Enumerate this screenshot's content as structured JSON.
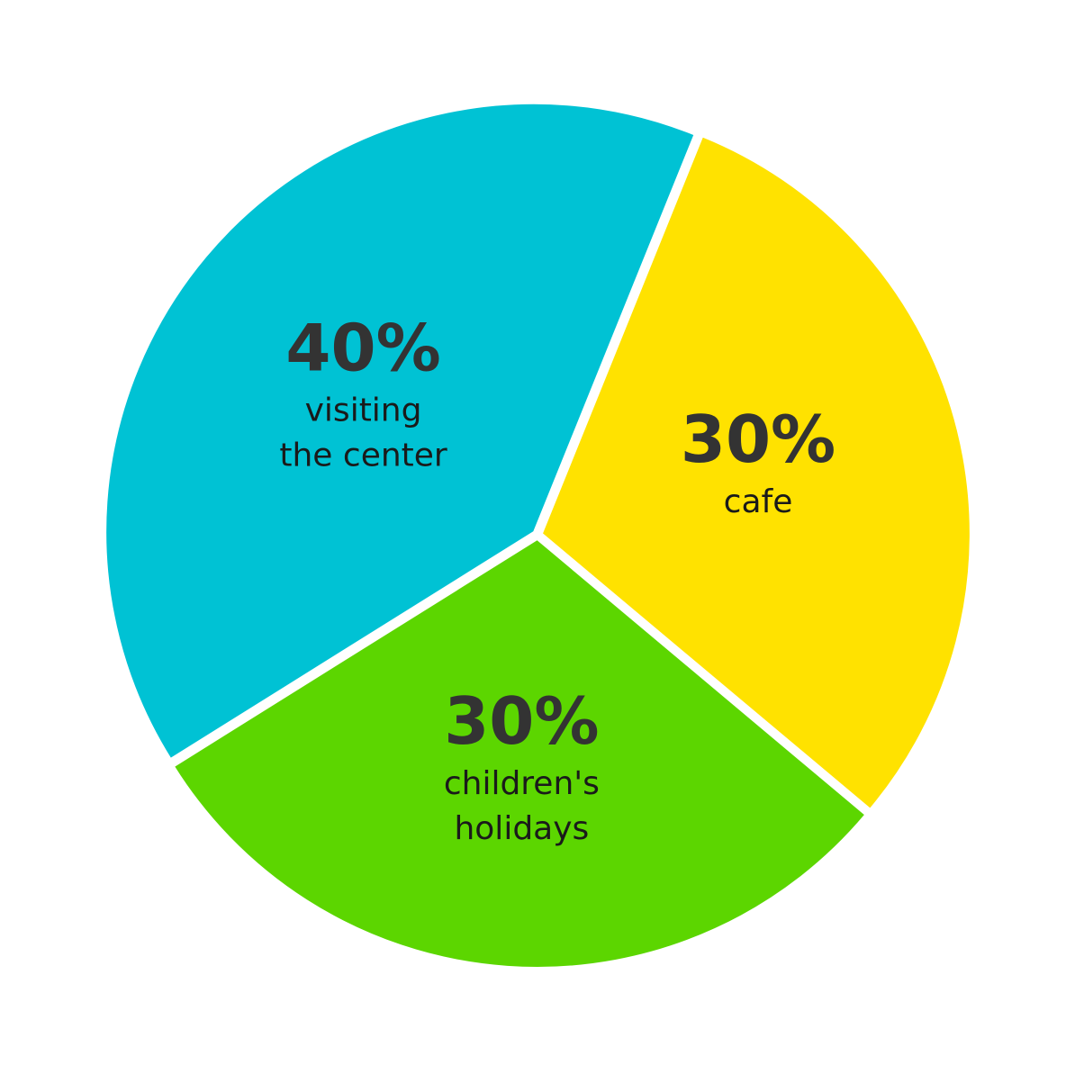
{
  "chart_data": {
    "type": "pie",
    "slices": [
      {
        "label_lines": [
          "cafe"
        ],
        "value": 30,
        "value_text": "30%",
        "color": "#FFE200"
      },
      {
        "label_lines": [
          "children's",
          "holidays"
        ],
        "value": 30,
        "value_text": "30%",
        "color": "#5CD600"
      },
      {
        "label_lines": [
          "visiting",
          "the center"
        ],
        "value": 40,
        "value_text": "40%",
        "color": "#00C2D4"
      }
    ]
  }
}
